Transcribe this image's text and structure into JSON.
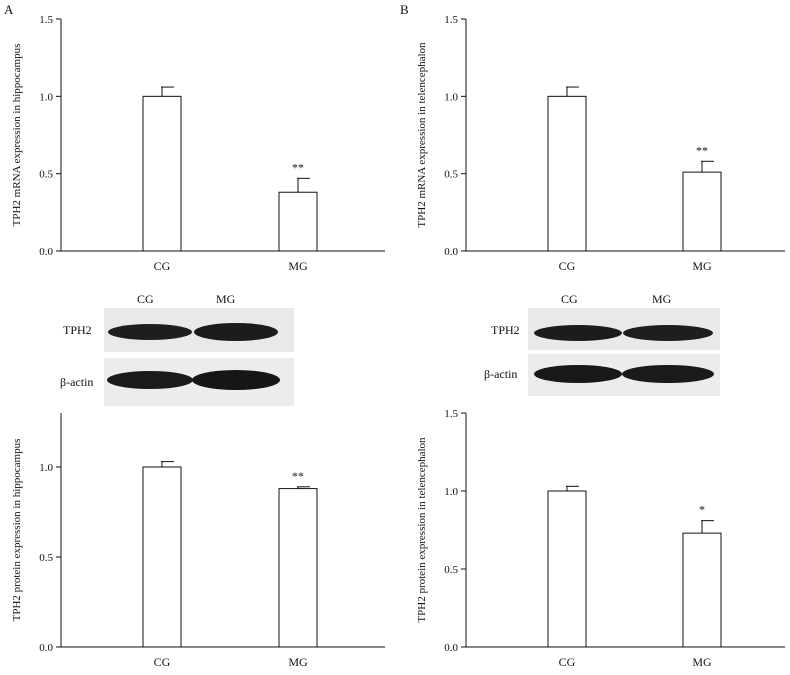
{
  "panels": [
    {
      "letter": "A"
    },
    {
      "letter": "B"
    }
  ],
  "blots": [
    {
      "lane_labels": [
        "CG",
        "MG"
      ],
      "row_labels": [
        "TPH2",
        "β-actin"
      ]
    },
    {
      "lane_labels": [
        "CG",
        "MG"
      ],
      "row_labels": [
        "TPH2",
        "β-actin"
      ]
    }
  ],
  "chart_data": [
    {
      "type": "bar",
      "categories": [
        "CG",
        "MG"
      ],
      "values": [
        1.0,
        0.38
      ],
      "errors": [
        0.06,
        0.09
      ],
      "annotations": [
        "",
        "**"
      ],
      "ylabel": "TPH2 mRNA expression in hippocampus",
      "yticks": [
        "0.0",
        "0.5",
        "1.0",
        "1.5"
      ],
      "ylim": [
        0,
        1.5
      ]
    },
    {
      "type": "bar",
      "categories": [
        "CG",
        "MG"
      ],
      "values": [
        1.0,
        0.51
      ],
      "errors": [
        0.06,
        0.07
      ],
      "annotations": [
        "",
        "**"
      ],
      "ylabel": "TPH2 mRNA expression in telencephalon",
      "yticks": [
        "0.0",
        "0.5",
        "1.0",
        "1.5"
      ],
      "ylim": [
        0,
        1.5
      ]
    },
    {
      "type": "bar",
      "categories": [
        "CG",
        "MG"
      ],
      "values": [
        1.0,
        0.88
      ],
      "errors": [
        0.03,
        0.01
      ],
      "annotations": [
        "",
        "**"
      ],
      "ylabel": "TPH2 protein expression in hippocampus",
      "yticks": [
        "0.0",
        "0.5",
        "1.0"
      ],
      "ylim": [
        0,
        1.3
      ]
    },
    {
      "type": "bar",
      "categories": [
        "CG",
        "MG"
      ],
      "values": [
        1.0,
        0.73
      ],
      "errors": [
        0.03,
        0.08
      ],
      "annotations": [
        "",
        "*"
      ],
      "ylabel": "TPH2 protein expression in telencephalon",
      "yticks": [
        "0.0",
        "0.5",
        "1.0",
        "1.5"
      ],
      "ylim": [
        0,
        1.5
      ]
    }
  ]
}
